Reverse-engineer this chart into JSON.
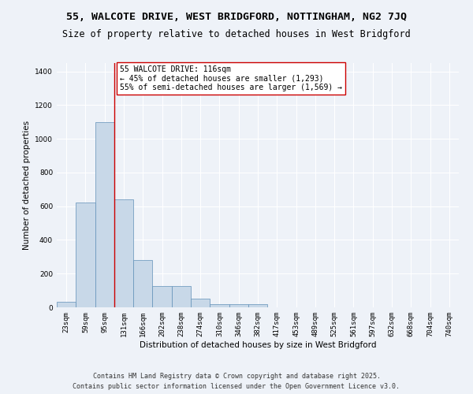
{
  "title_line1": "55, WALCOTE DRIVE, WEST BRIDGFORD, NOTTINGHAM, NG2 7JQ",
  "title_line2": "Size of property relative to detached houses in West Bridgford",
  "xlabel": "Distribution of detached houses by size in West Bridgford",
  "ylabel": "Number of detached properties",
  "bar_color": "#c8d8e8",
  "bar_edge_color": "#6090b8",
  "annotation_line_color": "#cc0000",
  "categories": [
    "23sqm",
    "59sqm",
    "95sqm",
    "131sqm",
    "166sqm",
    "202sqm",
    "238sqm",
    "274sqm",
    "310sqm",
    "346sqm",
    "382sqm",
    "417sqm",
    "453sqm",
    "489sqm",
    "525sqm",
    "561sqm",
    "597sqm",
    "632sqm",
    "668sqm",
    "704sqm",
    "740sqm"
  ],
  "values": [
    35,
    620,
    1100,
    640,
    280,
    125,
    125,
    50,
    20,
    20,
    20,
    0,
    0,
    0,
    0,
    0,
    0,
    0,
    0,
    0,
    0
  ],
  "ylim": [
    0,
    1450
  ],
  "yticks": [
    0,
    200,
    400,
    600,
    800,
    1000,
    1200,
    1400
  ],
  "property_bar_index": 2,
  "annotation_text_line1": "55 WALCOTE DRIVE: 116sqm",
  "annotation_text_line2": "← 45% of detached houses are smaller (1,293)",
  "annotation_text_line3": "55% of semi-detached houses are larger (1,569) →",
  "footnote_line1": "Contains HM Land Registry data © Crown copyright and database right 2025.",
  "footnote_line2": "Contains public sector information licensed under the Open Government Licence v3.0.",
  "background_color": "#eef2f8",
  "grid_color": "#ffffff",
  "title_fontsize": 9.5,
  "subtitle_fontsize": 8.5,
  "axis_label_fontsize": 7.5,
  "tick_fontsize": 6.5,
  "annotation_fontsize": 7,
  "footnote_fontsize": 6
}
